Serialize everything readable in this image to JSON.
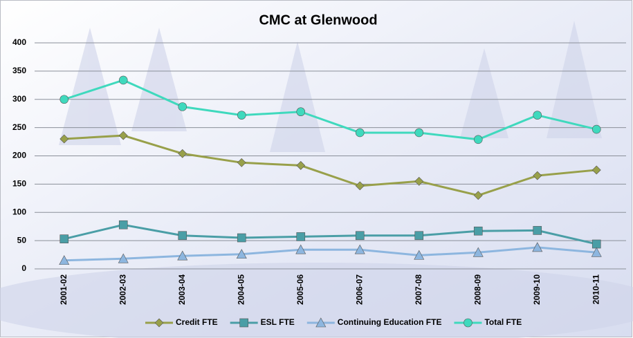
{
  "chart_data": {
    "type": "line",
    "title": "CMC at Glenwood",
    "categories": [
      "2001-02",
      "2002-03",
      "2003-04",
      "2004-05",
      "2005-06",
      "2006-07",
      "2007-08",
      "2008-09",
      "2009-10",
      "2010-11"
    ],
    "series": [
      {
        "name": "Credit FTE",
        "color": "#98a04a",
        "marker": "diamond",
        "values": [
          230,
          236,
          204,
          188,
          183,
          147,
          155,
          130,
          165,
          175
        ]
      },
      {
        "name": "ESL FTE",
        "color": "#4a9ea6",
        "marker": "square",
        "values": [
          53,
          78,
          59,
          55,
          57,
          59,
          59,
          67,
          68,
          44
        ]
      },
      {
        "name": "Continuing Education FTE",
        "color": "#8db6df",
        "marker": "triangle",
        "values": [
          15,
          18,
          23,
          26,
          34,
          34,
          24,
          29,
          38,
          29
        ]
      },
      {
        "name": "Total FTE",
        "color": "#3fd9bd",
        "marker": "circle",
        "values": [
          300,
          334,
          287,
          272,
          278,
          241,
          241,
          229,
          272,
          247
        ]
      }
    ],
    "ylim": [
      0,
      400
    ],
    "yticks": [
      0,
      50,
      100,
      150,
      200,
      250,
      300,
      350,
      400
    ],
    "grid": true
  }
}
